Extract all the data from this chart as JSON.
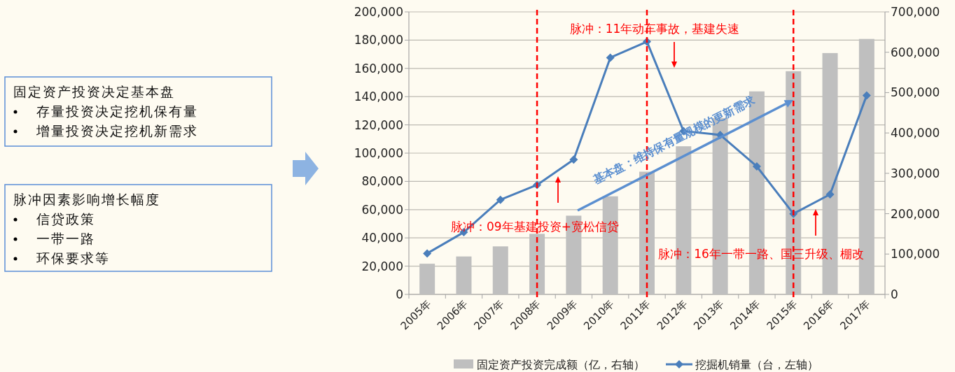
{
  "chart_data": [
    {
      "type": "other",
      "annotations": [
        "固定资产投资决定基本盘",
        "存量投资决定挖机保有量",
        "增量投资决定挖机新需求"
      ]
    },
    {
      "type": "other",
      "annotations": [
        "脉冲因素影响增长幅度",
        "信贷政策",
        "一带一路",
        "环保要求等"
      ]
    },
    {
      "type": "bar",
      "categories": [
        "2005年",
        "2006年",
        "2007年",
        "2008年",
        "2009年",
        "2010年",
        "2011年",
        "2012年",
        "2013年",
        "2014年",
        "2015年",
        "2016年",
        "2017年"
      ],
      "series": [
        {
          "name": "固定资产投资完成额（亿，右轴）",
          "type": "bar",
          "axis": "y2",
          "color": "#bfbfbf",
          "values": [
            76000,
            94000,
            119000,
            150000,
            195000,
            243000,
            304000,
            367000,
            437000,
            503000,
            553000,
            598000,
            633000
          ]
        },
        {
          "name": "挖掘机销量（台，左轴）",
          "type": "line",
          "color": "#4a7ebb",
          "marker": "diamond",
          "values": [
            29000,
            44000,
            67000,
            77500,
            95400,
            167600,
            178900,
            115600,
            112900,
            90600,
            57100,
            70800,
            140900
          ]
        }
      ],
      "ylim": [
        0,
        200000
      ],
      "yticks": [
        0,
        {
          "value": 20000,
          "label": "20,000"
        },
        {
          "value": 40000,
          "label": "40,000"
        },
        {
          "value": 60000,
          "label": "60,000"
        },
        {
          "value": 80000,
          "label": "80,000"
        },
        {
          "value": 100000,
          "label": "100,000"
        },
        {
          "value": 120000,
          "label": "120,000"
        },
        {
          "value": 140000,
          "label": "140,000"
        },
        {
          "value": 160000,
          "label": "160,000"
        },
        {
          "value": 180000,
          "label": "180,000"
        },
        {
          "value": 200000,
          "label": "200,000"
        }
      ],
      "y2lim": [
        0,
        700000
      ],
      "y2ticks": [
        0,
        {
          "value": 100000,
          "label": "100,000"
        },
        {
          "value": 200000,
          "label": "200,000"
        },
        {
          "value": 300000,
          "label": "300,000"
        },
        {
          "value": 400000,
          "label": "400,000"
        },
        {
          "value": 500000,
          "label": "500,000"
        },
        {
          "value": 600000,
          "label": "600,000"
        },
        {
          "value": 700000,
          "label": "700,000"
        }
      ],
      "grid": "y",
      "legend": "bottom",
      "ref_lines": [
        {
          "axis": "x",
          "value": "2008年",
          "color": "#ff0000",
          "line_style": "dashed"
        },
        {
          "axis": "x",
          "value": "2011年",
          "color": "#ff0000",
          "line_style": "dashed"
        },
        {
          "axis": "x",
          "value": "2015年",
          "color": "#ff0000",
          "line_style": "dashed"
        }
      ],
      "annotations": [
        "脉冲：11年动车事故，基建失速",
        "脉冲：09年基建投资+宽松信贷",
        "脉冲：16年一带一路、国三升级、棚改",
        "基本盘：维持保有量规模的更新需求"
      ]
    }
  ]
}
